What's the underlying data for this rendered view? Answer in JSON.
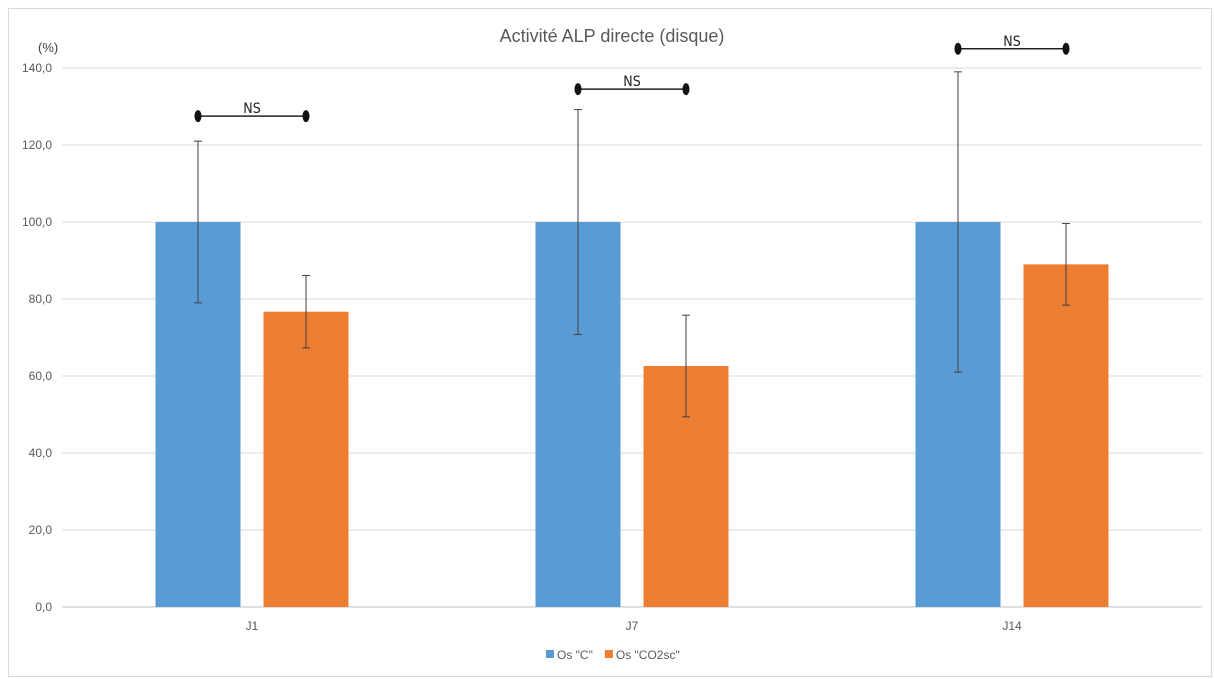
{
  "chart_data": {
    "type": "bar",
    "title": "Activité ALP directe (disque)",
    "y_unit": "(%)",
    "categories": [
      "J1",
      "J7",
      "J14"
    ],
    "ylim": [
      0,
      140
    ],
    "yticks": [
      "0,0",
      "20,0",
      "40,0",
      "60,0",
      "80,0",
      "100,0",
      "120,0",
      "140,0"
    ],
    "grid": true,
    "legend_position": "bottom",
    "series": [
      {
        "name": "Os \"C\"",
        "color": "#5b9bd5",
        "values": [
          100,
          100,
          100
        ],
        "errors": [
          21,
          29.2,
          39
        ]
      },
      {
        "name": "Os \"CO2sc\"",
        "color": "#ed7d31",
        "values": [
          76.7,
          62.6,
          89
        ],
        "errors": [
          9.4,
          13.2,
          10.6
        ]
      }
    ],
    "annotations": [
      {
        "category": "J1",
        "text": "NS",
        "y": 127.5
      },
      {
        "category": "J7",
        "text": "NS",
        "y": 134.5
      },
      {
        "category": "J14",
        "text": "NS",
        "y": 145
      }
    ]
  }
}
